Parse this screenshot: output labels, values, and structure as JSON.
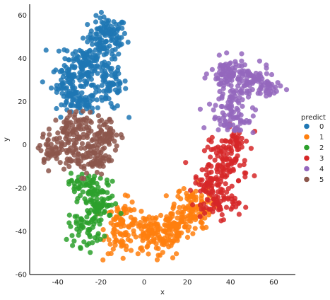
{
  "chart_data": {
    "type": "scatter",
    "title": "",
    "xlabel": "x",
    "ylabel": "y",
    "xlim": [
      -53,
      70
    ],
    "ylim": [
      -60,
      65
    ],
    "xticks": [
      -40,
      -20,
      0,
      20,
      40,
      60
    ],
    "yticks": [
      -60,
      -40,
      -20,
      0,
      20,
      40,
      60
    ],
    "grid": false,
    "legend": {
      "title": "predict",
      "placement": "right"
    },
    "series": [
      {
        "name": "0",
        "color": "#1f77b4",
        "clusters": [
          {
            "cx": -17,
            "cy": 50,
            "sx": 4.5,
            "sy": 4.5,
            "n": 110
          },
          {
            "cx": -28,
            "cy": 38,
            "sx": 5.0,
            "sy": 5.0,
            "n": 110
          },
          {
            "cx": -34,
            "cy": 28,
            "sx": 4.5,
            "sy": 4.5,
            "n": 80
          },
          {
            "cx": -16,
            "cy": 28,
            "sx": 4.0,
            "sy": 6.0,
            "n": 80
          },
          {
            "cx": -30,
            "cy": 19,
            "sx": 4.0,
            "sy": 2.5,
            "n": 50
          }
        ]
      },
      {
        "name": "1",
        "color": "#ff7f0e",
        "clusters": [
          {
            "cx": -10,
            "cy": -38,
            "sx": 4.0,
            "sy": 6.0,
            "n": 90
          },
          {
            "cx": 3,
            "cy": -42,
            "sx": 5.0,
            "sy": 5.0,
            "n": 100
          },
          {
            "cx": 14,
            "cy": -38,
            "sx": 4.0,
            "sy": 5.0,
            "n": 80
          },
          {
            "cx": 22,
            "cy": -29,
            "sx": 4.5,
            "sy": 5.0,
            "n": 90
          }
        ]
      },
      {
        "name": "2",
        "color": "#2ca02c",
        "clusters": [
          {
            "cx": -28,
            "cy": -18,
            "sx": 3.5,
            "sy": 2.5,
            "n": 40
          },
          {
            "cx": -21,
            "cy": -27,
            "sx": 4.5,
            "sy": 5.0,
            "n": 80
          },
          {
            "cx": -27,
            "cy": -38,
            "sx": 4.0,
            "sy": 4.5,
            "n": 60
          }
        ]
      },
      {
        "name": "3",
        "color": "#d62728",
        "clusters": [
          {
            "cx": 42,
            "cy": 2,
            "sx": 3.5,
            "sy": 3.5,
            "n": 40
          },
          {
            "cx": 38,
            "cy": -9,
            "sx": 5.0,
            "sy": 5.0,
            "n": 80
          },
          {
            "cx": 31,
            "cy": -20,
            "sx": 4.0,
            "sy": 4.5,
            "n": 70
          },
          {
            "cx": 36,
            "cy": -28,
            "sx": 4.0,
            "sy": 3.0,
            "n": 40
          }
        ]
      },
      {
        "name": "4",
        "color": "#9467bd",
        "clusters": [
          {
            "cx": 40,
            "cy": 33,
            "sx": 4.5,
            "sy": 3.5,
            "n": 80
          },
          {
            "cx": 50,
            "cy": 30,
            "sx": 4.0,
            "sy": 3.0,
            "n": 50
          },
          {
            "cx": 58,
            "cy": 26,
            "sx": 3.5,
            "sy": 2.5,
            "n": 30
          },
          {
            "cx": 40,
            "cy": 22,
            "sx": 4.0,
            "sy": 3.5,
            "n": 50
          },
          {
            "cx": 41,
            "cy": 12,
            "sx": 5.0,
            "sy": 3.5,
            "n": 60
          }
        ]
      },
      {
        "name": "5",
        "color": "#8c564b",
        "clusters": [
          {
            "cx": -35,
            "cy": 5,
            "sx": 5.0,
            "sy": 5.0,
            "n": 100
          },
          {
            "cx": -18,
            "cy": 5,
            "sx": 3.5,
            "sy": 4.0,
            "n": 60
          },
          {
            "cx": -26,
            "cy": -6,
            "sx": 5.5,
            "sy": 4.0,
            "n": 90
          },
          {
            "cx": -43,
            "cy": -3,
            "sx": 3.0,
            "sy": 3.0,
            "n": 30
          }
        ]
      }
    ]
  }
}
